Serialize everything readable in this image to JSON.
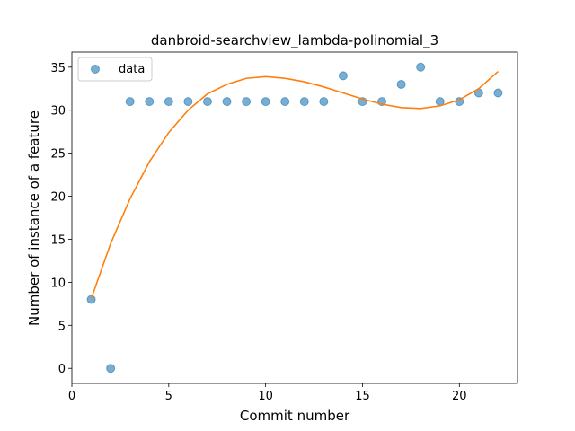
{
  "chart_data": {
    "type": "scatter",
    "title": "danbroid-searchview_lambda-polinomial_3",
    "xlabel": "Commit number",
    "ylabel": "Number of instance of a feature",
    "xlim": [
      0,
      23
    ],
    "ylim": [
      -1.75,
      36.75
    ],
    "xticks": [
      0,
      5,
      10,
      15,
      20
    ],
    "yticks": [
      0,
      5,
      10,
      15,
      20,
      25,
      30,
      35
    ],
    "grid": false,
    "legend_position": "top-left",
    "series": [
      {
        "name": "data",
        "kind": "scatter",
        "color": "#1f77b4",
        "x": [
          1,
          2,
          3,
          4,
          5,
          6,
          7,
          8,
          9,
          10,
          11,
          12,
          13,
          14,
          15,
          16,
          17,
          18,
          19,
          20,
          21,
          22
        ],
        "y": [
          8,
          0,
          31,
          31,
          31,
          31,
          31,
          31,
          31,
          31,
          31,
          31,
          31,
          34,
          31,
          31,
          33,
          35,
          31,
          31,
          32,
          32
        ]
      },
      {
        "kind": "line",
        "color": "#ff7f0e",
        "x": [
          1,
          2,
          3,
          4,
          5,
          6,
          7,
          8,
          9,
          10,
          11,
          12,
          13,
          14,
          15,
          16,
          17,
          18,
          19,
          20,
          21,
          22
        ],
        "y": [
          8.1,
          14.5,
          19.7,
          24.0,
          27.4,
          30.0,
          31.9,
          33.0,
          33.7,
          33.9,
          33.7,
          33.3,
          32.7,
          32.0,
          31.3,
          30.7,
          30.3,
          30.2,
          30.5,
          31.2,
          32.5,
          34.5
        ]
      }
    ]
  }
}
